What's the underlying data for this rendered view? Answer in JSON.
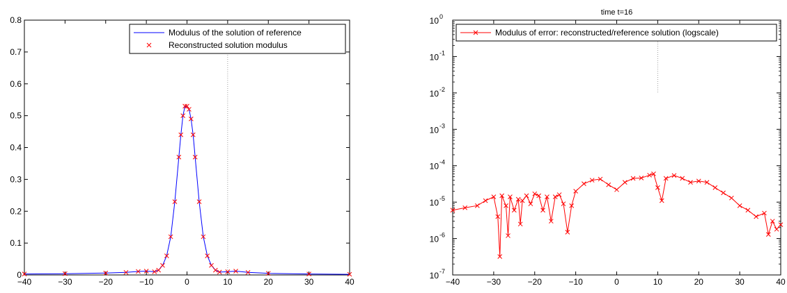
{
  "chart_data": [
    {
      "type": "line",
      "title": "",
      "xlabel": "",
      "ylabel": "",
      "xlim": [
        -40,
        40
      ],
      "ylim": [
        0,
        0.8
      ],
      "x_ticks": [
        "−40",
        "−30",
        "−20",
        "−10",
        "0",
        "10",
        "20",
        "30",
        "40"
      ],
      "y_ticks": [
        "0",
        "0.1",
        "0.2",
        "0.3",
        "0.4",
        "0.5",
        "0.6",
        "0.7",
        "0.8"
      ],
      "grid": false,
      "legend_position": "top-right",
      "vertical_marker_x": 10,
      "series": [
        {
          "name": "Modulus of the solution of reference",
          "style": "line",
          "color": "#0000ff",
          "x": [
            -40,
            -30,
            -20,
            -15,
            -12,
            -10,
            -8,
            -7,
            -6,
            -5,
            -4,
            -3,
            -2,
            -1.5,
            -1,
            -0.5,
            0,
            0.5,
            1,
            1.5,
            2,
            3,
            4,
            5,
            6,
            7,
            8,
            10,
            12,
            15,
            20,
            30,
            40
          ],
          "y": [
            0.003,
            0.004,
            0.006,
            0.008,
            0.011,
            0.012,
            0.01,
            0.015,
            0.03,
            0.06,
            0.12,
            0.23,
            0.37,
            0.44,
            0.5,
            0.53,
            0.53,
            0.52,
            0.49,
            0.44,
            0.37,
            0.23,
            0.12,
            0.06,
            0.03,
            0.015,
            0.009,
            0.01,
            0.012,
            0.008,
            0.005,
            0.003,
            0.002
          ]
        },
        {
          "name": "Reconstructed solution modulus",
          "style": "markers",
          "marker": "x",
          "color": "#ff0000",
          "x": [
            -40,
            -30,
            -20,
            -15,
            -12,
            -10,
            -8,
            -7,
            -6,
            -5,
            -4,
            -3,
            -2,
            -1.5,
            -1,
            -0.5,
            0,
            0.5,
            1,
            1.5,
            2,
            3,
            4,
            5,
            6,
            7,
            8,
            10,
            12,
            15,
            20,
            30,
            40
          ],
          "y": [
            0.003,
            0.004,
            0.006,
            0.008,
            0.011,
            0.012,
            0.01,
            0.015,
            0.03,
            0.06,
            0.12,
            0.23,
            0.37,
            0.44,
            0.5,
            0.53,
            0.53,
            0.52,
            0.49,
            0.44,
            0.37,
            0.23,
            0.12,
            0.06,
            0.03,
            0.015,
            0.009,
            0.01,
            0.012,
            0.008,
            0.005,
            0.003,
            0.002
          ]
        }
      ]
    },
    {
      "type": "line",
      "title": "time t=16",
      "xlabel": "",
      "ylabel": "",
      "xlim": [
        -40,
        40
      ],
      "ylim": [
        1e-07,
        1
      ],
      "yscale": "log",
      "x_ticks": [
        "−40",
        "−30",
        "−20",
        "−10",
        "0",
        "10",
        "20",
        "30",
        "40"
      ],
      "y_ticks": [
        {
          "base": "10",
          "exp": "-7",
          "value": 1e-07
        },
        {
          "base": "10",
          "exp": "-6",
          "value": 1e-06
        },
        {
          "base": "10",
          "exp": "-5",
          "value": 1e-05
        },
        {
          "base": "10",
          "exp": "-4",
          "value": 0.0001
        },
        {
          "base": "10",
          "exp": "-3",
          "value": 0.001
        },
        {
          "base": "10",
          "exp": "-2",
          "value": 0.01
        },
        {
          "base": "10",
          "exp": "-1",
          "value": 0.1
        },
        {
          "base": "10",
          "exp": "0",
          "value": 1
        }
      ],
      "grid": false,
      "legend_position": "top-right",
      "vertical_marker_x": 10,
      "series": [
        {
          "name": "Modulus of error: reconstructed/reference solution (logscale)",
          "style": "line+markers",
          "marker": "x",
          "color": "#ff0000",
          "x": [
            -40,
            -37,
            -34,
            -32,
            -30,
            -29,
            -28.5,
            -28,
            -27,
            -26.5,
            -26,
            -25,
            -24,
            -23.5,
            -23,
            -22,
            -21,
            -20,
            -19,
            -18,
            -17,
            -16,
            -15,
            -14,
            -13,
            -12,
            -11,
            -10,
            -8,
            -6,
            -4,
            -2,
            0,
            2,
            4,
            6,
            8,
            9,
            10,
            11,
            12,
            14,
            16,
            18,
            20,
            22,
            24,
            26,
            28,
            30,
            32,
            34,
            36,
            37,
            38,
            39,
            40
          ],
          "y": [
            6e-06,
            7e-06,
            8e-06,
            1.1e-05,
            1.4e-05,
            4e-06,
            3.2e-07,
            1.5e-05,
            8e-06,
            1.2e-06,
            1.4e-05,
            6e-06,
            1.2e-05,
            2.5e-06,
            1.1e-05,
            1.5e-05,
            9e-06,
            1.7e-05,
            1.5e-05,
            6e-06,
            1.4e-05,
            3e-06,
            1.4e-05,
            1.6e-05,
            9e-06,
            1.5e-06,
            8e-06,
            2e-05,
            3.2e-05,
            4e-05,
            4.3e-05,
            3e-05,
            2.2e-05,
            3.5e-05,
            4.5e-05,
            4.6e-05,
            5.5e-05,
            6e-05,
            2.5e-05,
            1.1e-05,
            4.5e-05,
            5.4e-05,
            4.5e-05,
            3.5e-05,
            3.8e-05,
            3.5e-05,
            2.5e-05,
            1.8e-05,
            1.3e-05,
            8e-06,
            6e-06,
            4e-06,
            5e-06,
            1.3e-06,
            3e-06,
            1.8e-06,
            2.4e-06
          ]
        }
      ]
    }
  ]
}
